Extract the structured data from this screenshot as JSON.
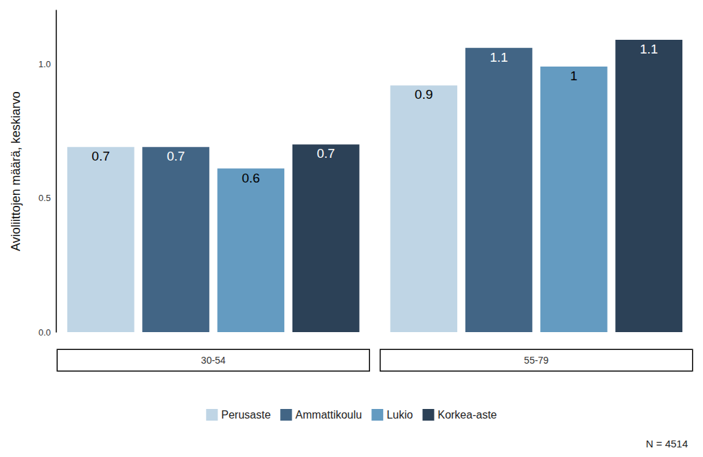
{
  "chart_data": {
    "type": "bar",
    "y_label": "Avioliittojen määrä, keskiarvo",
    "categories": [
      "30-54",
      "55-79"
    ],
    "series": [
      {
        "name": "Perusaste",
        "color": "#bfd5e5",
        "values": [
          0.69,
          0.92
        ],
        "value_labels": [
          "0.7",
          "0.9"
        ]
      },
      {
        "name": "Ammattikoulu",
        "color": "#426585",
        "values": [
          0.69,
          1.06
        ],
        "value_labels": [
          "0.7",
          "1.1"
        ]
      },
      {
        "name": "Lukio",
        "color": "#649bc1",
        "values": [
          0.61,
          0.99
        ],
        "value_labels": [
          "0.6",
          "1"
        ]
      },
      {
        "name": "Korkea-aste",
        "color": "#2c4157",
        "values": [
          0.7,
          1.09
        ],
        "value_labels": [
          "0.7",
          "1.1"
        ]
      }
    ],
    "ylim": [
      0,
      1.2
    ],
    "yticks": [
      {
        "value": 0,
        "label": "0.0"
      },
      {
        "value": 0.5,
        "label": "0.5"
      },
      {
        "value": 1,
        "label": "1.0"
      }
    ],
    "grid": false,
    "legend": "bottom",
    "data_labels": true,
    "annotation": "N = 4514"
  }
}
